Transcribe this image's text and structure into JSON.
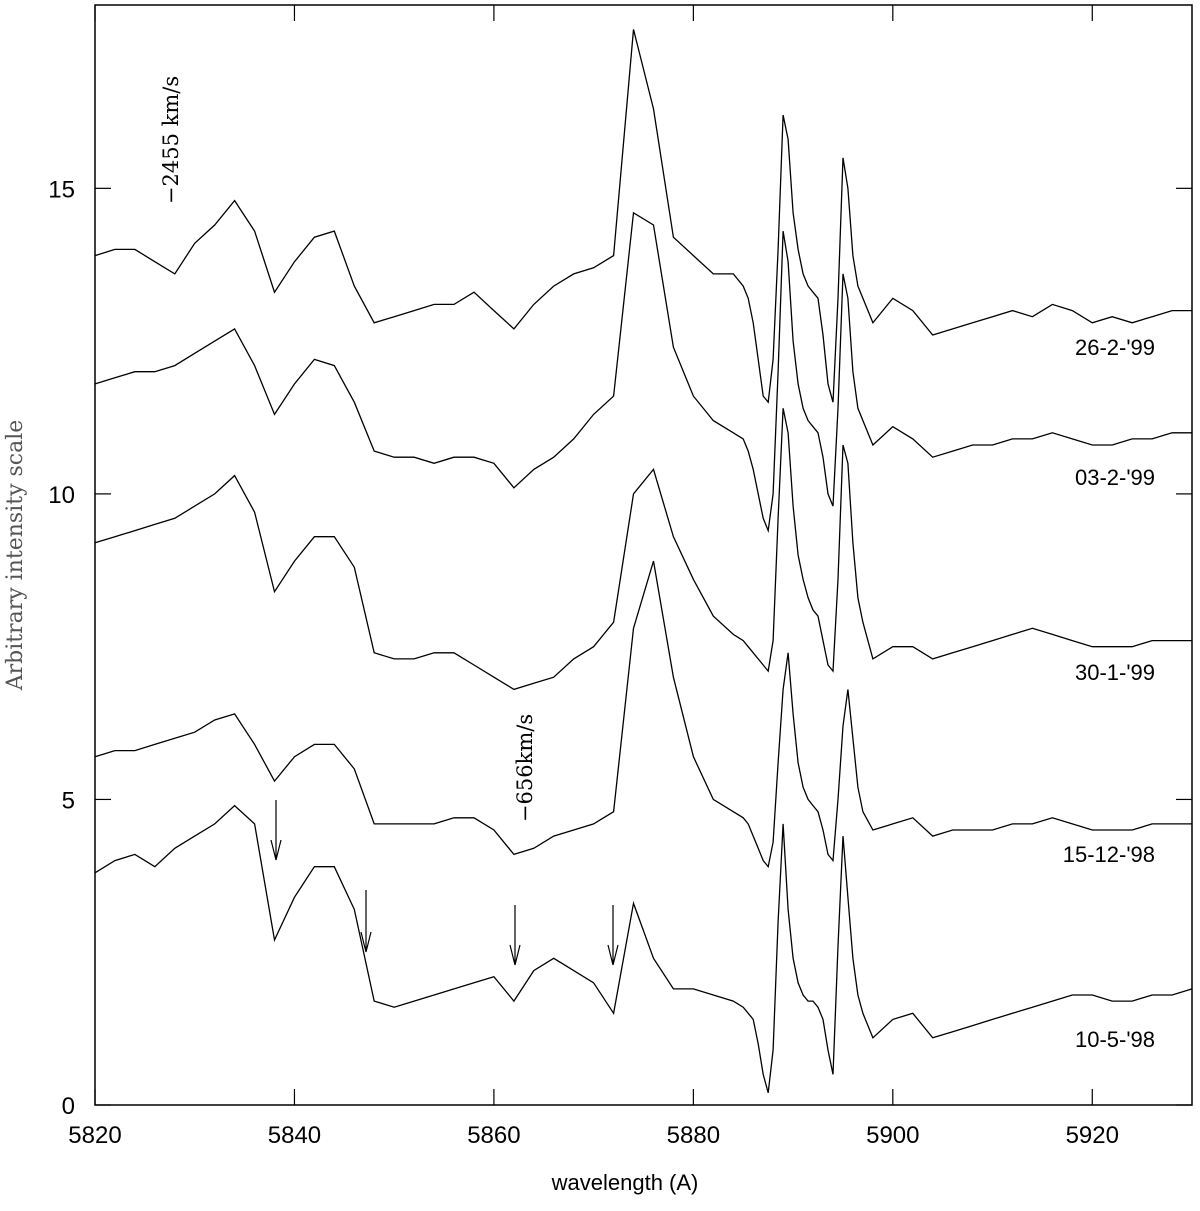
{
  "chart_data": {
    "type": "line",
    "x_label": "wavelength (A)",
    "y_label": "Arbitrary intensity scale",
    "annotations": [
      "−2455 km/s",
      "−656km/s"
    ],
    "xlim": [
      5820,
      5930
    ],
    "ylim": [
      0,
      18
    ],
    "xticks": [
      5820,
      5840,
      5860,
      5880,
      5900,
      5920
    ],
    "yticks": [
      0,
      5,
      10,
      15
    ],
    "x": [
      5820,
      5822,
      5824,
      5826,
      5828,
      5830,
      5832,
      5834,
      5836,
      5838,
      5840,
      5842,
      5844,
      5846,
      5848,
      5850,
      5852,
      5854,
      5856,
      5858,
      5860,
      5862,
      5864,
      5866,
      5868,
      5870,
      5872,
      5874,
      5876,
      5878,
      5880,
      5882,
      5884,
      5885,
      5885.5,
      5886,
      5886.5,
      5887,
      5887.5,
      5888,
      5888.5,
      5889,
      5889.5,
      5890,
      5890.5,
      5891,
      5891.5,
      5892,
      5892.5,
      5893,
      5893.5,
      5894,
      5894.5,
      5895,
      5895.5,
      5896,
      5896.5,
      5897,
      5898,
      5900,
      5902,
      5904,
      5906,
      5908,
      5910,
      5912,
      5914,
      5916,
      5918,
      5920,
      5922,
      5924,
      5926,
      5928,
      5930
    ],
    "series": [
      {
        "name": "26-2-'99",
        "color": "#000000",
        "values": [
          13.9,
          14.0,
          14.0,
          13.8,
          13.6,
          14.1,
          14.4,
          14.8,
          14.3,
          13.3,
          13.8,
          14.2,
          14.3,
          13.4,
          12.8,
          12.9,
          13.0,
          13.1,
          13.1,
          13.3,
          13.0,
          12.7,
          13.1,
          13.4,
          13.6,
          13.7,
          13.9,
          17.6,
          16.3,
          14.2,
          13.9,
          13.6,
          13.6,
          13.4,
          13.2,
          12.8,
          12.2,
          11.6,
          11.5,
          12.2,
          14.0,
          16.2,
          15.8,
          14.6,
          14.0,
          13.6,
          13.4,
          13.3,
          13.2,
          12.6,
          11.8,
          11.5,
          13.2,
          15.5,
          15.0,
          13.9,
          13.4,
          13.2,
          12.8,
          13.2,
          13.0,
          12.6,
          12.7,
          12.8,
          12.9,
          13.0,
          12.9,
          13.1,
          13.0,
          12.8,
          12.9,
          12.8,
          12.9,
          13.0,
          13.0
        ]
      },
      {
        "name": "03-2-'99",
        "color": "#000000",
        "values": [
          11.8,
          11.9,
          12.0,
          12.0,
          12.1,
          12.3,
          12.5,
          12.7,
          12.1,
          11.3,
          11.8,
          12.2,
          12.1,
          11.5,
          10.7,
          10.6,
          10.6,
          10.5,
          10.6,
          10.6,
          10.5,
          10.1,
          10.4,
          10.6,
          10.9,
          11.3,
          11.6,
          14.6,
          14.4,
          12.4,
          11.6,
          11.2,
          11.0,
          10.9,
          10.7,
          10.4,
          10.0,
          9.6,
          9.4,
          10.0,
          12.0,
          14.3,
          13.8,
          12.5,
          11.8,
          11.4,
          11.2,
          11.1,
          11.0,
          10.6,
          10.0,
          9.8,
          11.4,
          13.6,
          13.2,
          12.0,
          11.4,
          11.2,
          10.8,
          11.1,
          10.9,
          10.6,
          10.7,
          10.8,
          10.8,
          10.9,
          10.9,
          11.0,
          10.9,
          10.8,
          10.8,
          10.9,
          10.9,
          11.0,
          11.0
        ]
      },
      {
        "name": "30-1-'99",
        "color": "#000000",
        "values": [
          9.2,
          9.3,
          9.4,
          9.5,
          9.6,
          9.8,
          10.0,
          10.3,
          9.7,
          8.4,
          8.9,
          9.3,
          9.3,
          8.8,
          7.4,
          7.3,
          7.3,
          7.4,
          7.4,
          7.2,
          7.0,
          6.8,
          6.9,
          7.0,
          7.3,
          7.5,
          7.9,
          10.0,
          10.4,
          9.3,
          8.6,
          8.0,
          7.7,
          7.6,
          7.5,
          7.4,
          7.3,
          7.2,
          7.1,
          7.6,
          9.6,
          11.4,
          11.0,
          9.8,
          9.0,
          8.6,
          8.3,
          8.1,
          8.0,
          7.6,
          7.2,
          7.1,
          8.6,
          10.8,
          10.5,
          9.2,
          8.3,
          7.9,
          7.3,
          7.5,
          7.5,
          7.3,
          7.4,
          7.5,
          7.6,
          7.7,
          7.8,
          7.7,
          7.6,
          7.5,
          7.5,
          7.5,
          7.6,
          7.6,
          7.6
        ]
      },
      {
        "name": "15-12-'98",
        "color": "#000000",
        "values": [
          5.7,
          5.8,
          5.8,
          5.9,
          6.0,
          6.1,
          6.3,
          6.4,
          5.9,
          5.3,
          5.7,
          5.9,
          5.9,
          5.5,
          4.6,
          4.6,
          4.6,
          4.6,
          4.7,
          4.7,
          4.5,
          4.1,
          4.2,
          4.4,
          4.5,
          4.6,
          4.8,
          7.8,
          8.9,
          7.0,
          5.7,
          5.0,
          4.8,
          4.7,
          4.6,
          4.4,
          4.2,
          4.0,
          3.9,
          4.3,
          5.6,
          6.8,
          7.4,
          6.4,
          5.6,
          5.2,
          5.0,
          4.9,
          4.8,
          4.5,
          4.1,
          4.0,
          5.0,
          6.2,
          6.8,
          6.0,
          5.2,
          4.8,
          4.5,
          4.6,
          4.7,
          4.4,
          4.5,
          4.5,
          4.5,
          4.6,
          4.6,
          4.7,
          4.6,
          4.5,
          4.5,
          4.5,
          4.6,
          4.6,
          4.6
        ]
      },
      {
        "name": "10-5-'98",
        "color": "#000000",
        "values": [
          3.8,
          4.0,
          4.1,
          3.9,
          4.2,
          4.4,
          4.6,
          4.9,
          4.6,
          2.7,
          3.4,
          3.9,
          3.9,
          3.2,
          1.7,
          1.6,
          1.7,
          1.8,
          1.9,
          2.0,
          2.1,
          1.7,
          2.2,
          2.4,
          2.2,
          2.0,
          1.5,
          3.3,
          2.4,
          1.9,
          1.9,
          1.8,
          1.7,
          1.6,
          1.5,
          1.4,
          1.0,
          0.5,
          0.2,
          0.9,
          3.0,
          4.6,
          3.2,
          2.4,
          2.0,
          1.8,
          1.7,
          1.7,
          1.6,
          1.4,
          0.9,
          0.5,
          2.6,
          4.4,
          3.4,
          2.4,
          1.8,
          1.5,
          1.1,
          1.4,
          1.5,
          1.1,
          1.2,
          1.3,
          1.4,
          1.5,
          1.6,
          1.7,
          1.8,
          1.8,
          1.7,
          1.7,
          1.8,
          1.8,
          1.9
        ]
      }
    ]
  }
}
